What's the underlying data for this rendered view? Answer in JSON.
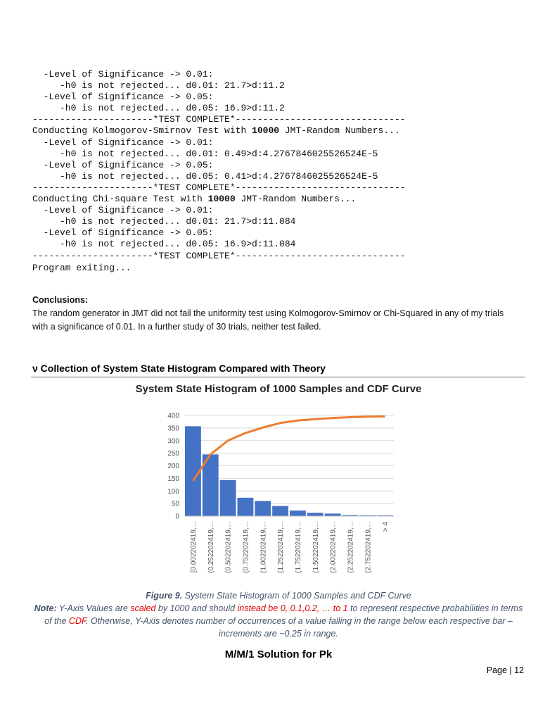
{
  "code": [
    "  -Level of Significance -> 0.01:",
    "     -h0 is not rejected... d0.01: 21.7>d:11.2",
    "  -Level of Significance -> 0.05:",
    "     -h0 is not rejected... d0.05: 16.9>d:11.2",
    "----------------------*TEST COMPLETE*-------------------------------",
    [
      "Conducting Kolmogorov-Smirnov Test with ",
      "10000",
      " JMT-Random Numbers..."
    ],
    "  -Level of Significance -> 0.01:",
    "     -h0 is not rejected... d0.01: 0.49>d:4.2767846025526524E-5",
    "  -Level of Significance -> 0.05:",
    "     -h0 is not rejected... d0.05: 0.41>d:4.2767846025526524E-5",
    "----------------------*TEST COMPLETE*-------------------------------",
    [
      "Conducting Chi-square Test with ",
      "10000",
      " JMT-Random Numbers..."
    ],
    "  -Level of Significance -> 0.01:",
    "     -h0 is not rejected... d0.01: 21.7>d:11.084",
    "  -Level of Significance -> 0.05:",
    "     -h0 is not rejected... d0.05: 16.9>d:11.084",
    "----------------------*TEST COMPLETE*-------------------------------",
    "Program exiting..."
  ],
  "conclusions": {
    "heading": "Conclusions:",
    "text": "The random generator in JMT did not fail the uniformity test using Kolmogorov-Smirnov or Chi-Squared in any of my trials with a significance of 0.01. In a further study of 30 trials, neither test failed."
  },
  "section_heading": "ν Collection of System State Histogram Compared with Theory",
  "chart_data": {
    "type": "bar",
    "title": "System State Histogram of 1000 Samples and CDF Curve",
    "categories": [
      "[0.002202419,...",
      "(0.252202419,...",
      "(0.502202419,...",
      "(0.752202419,...",
      "(1.002202419,...",
      "(1.252202419,...",
      "(1.752202419,...",
      "(1.502202419,...",
      "(2.002202419,...",
      "(2.252202419,...",
      "(2.752202419,...",
      "> 4"
    ],
    "series": [
      {
        "type": "bar",
        "color": "#4472c4",
        "values": [
          357,
          245,
          143,
          73,
          60,
          40,
          22,
          13,
          10,
          4,
          3,
          3
        ]
      },
      {
        "type": "line",
        "color": "#ed7d31",
        "values": [
          140,
          245,
          300,
          330,
          352,
          370,
          380,
          385,
          390,
          393,
          395,
          396
        ]
      }
    ],
    "ylim": [
      0,
      400
    ],
    "yticks": [
      0,
      50,
      100,
      150,
      200,
      250,
      300,
      350,
      400
    ],
    "grid": true
  },
  "caption": {
    "figure": "Figure 9.",
    "title": " System State Histogram of 1000 Samples and CDF Curve",
    "note": [
      "Note:",
      " Y-Axis Values are ",
      "scaled",
      " by 1000 and should ",
      "instead be 0, 0.1,0.2, … to 1",
      " to represent respective probabilities in terms of the ",
      "CDF",
      ". Otherwise, Y-Axis denotes number of occurrences of a value falling in the range below each respective bar – increments are ~0.25 in range."
    ]
  },
  "next_heading": "M/M/1 Solution for Pk",
  "footer": "Page | 12"
}
